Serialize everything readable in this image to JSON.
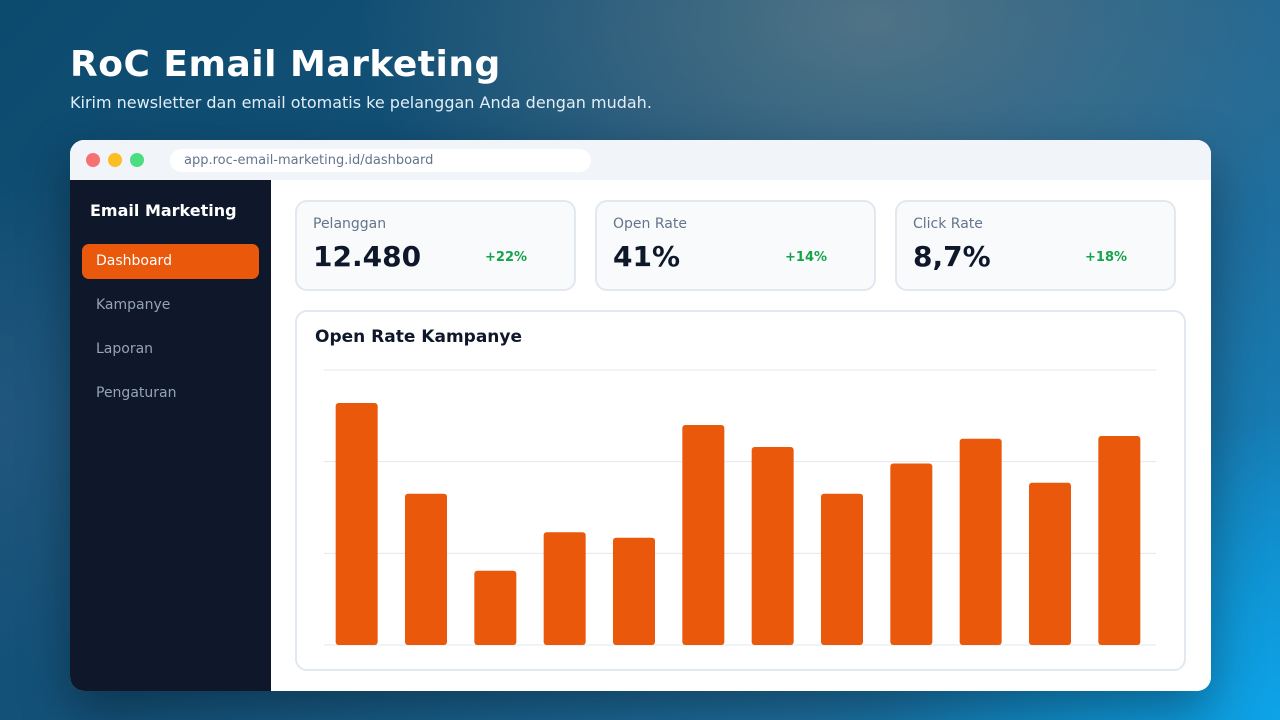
{
  "hero": {
    "title": "RoC Email Marketing",
    "subtitle": "Kirim newsletter dan email otomatis ke pelanggan Anda dengan mudah."
  },
  "browser": {
    "url": "app.roc-email-marketing.id/dashboard"
  },
  "sidebar": {
    "title": "Email Marketing",
    "items": [
      {
        "label": "Dashboard",
        "active": true
      },
      {
        "label": "Kampanye",
        "active": false
      },
      {
        "label": "Laporan",
        "active": false
      },
      {
        "label": "Pengaturan",
        "active": false
      }
    ]
  },
  "stats": [
    {
      "label": "Pelanggan",
      "value": "12.480",
      "delta": "+22%"
    },
    {
      "label": "Open Rate",
      "value": "41%",
      "delta": "+14%"
    },
    {
      "label": "Click Rate",
      "value": "8,7%",
      "delta": "+18%"
    }
  ],
  "colors": {
    "accent": "#ea580c",
    "sidebar_bg": "#0f172a",
    "positive": "#16a34a"
  },
  "chart_data": {
    "type": "bar",
    "title": "Open Rate Kampanye",
    "xlabel": "",
    "ylabel": "",
    "values": [
      88,
      55,
      27,
      41,
      39,
      80,
      72,
      55,
      66,
      75,
      59,
      76
    ],
    "ylim": [
      0,
      100
    ],
    "grid": true,
    "color": "#ea580c"
  }
}
